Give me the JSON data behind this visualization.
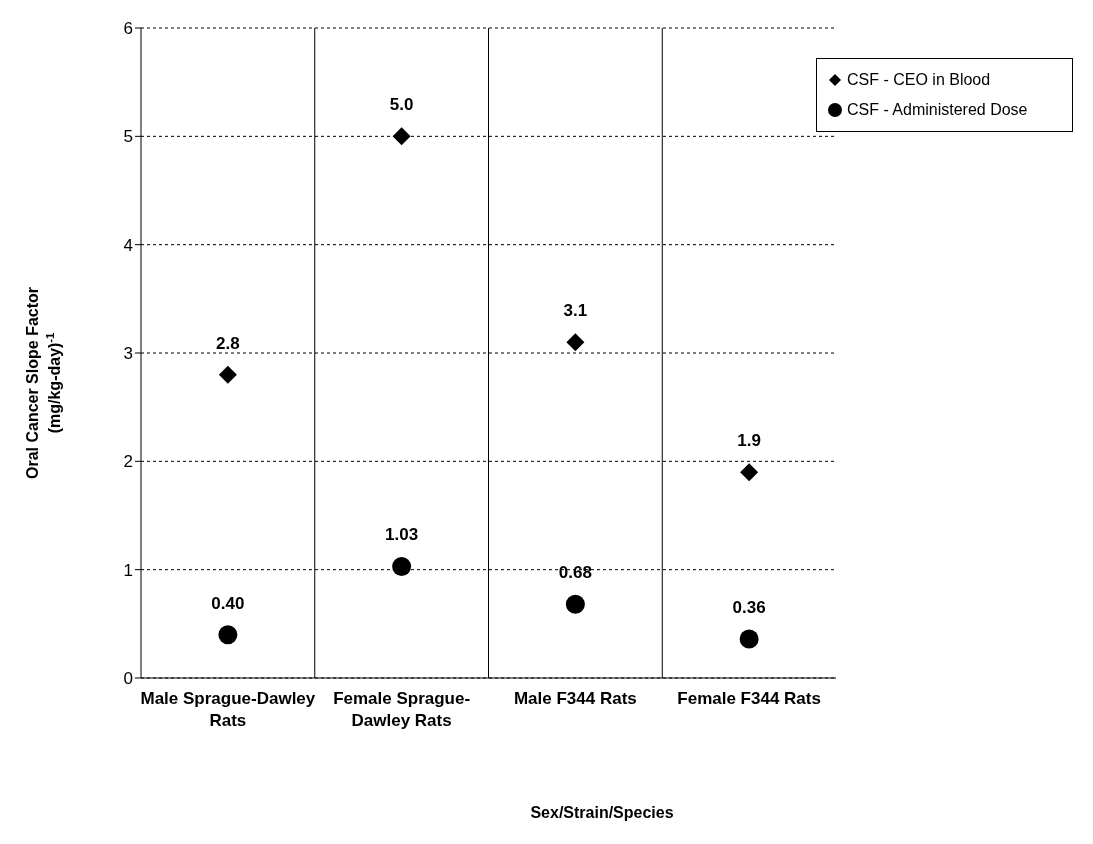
{
  "chart_data": {
    "type": "scatter",
    "xlabel": "Sex/Strain/Species",
    "ylabel": "Oral Cancer Slope Factor\n(mg/kg-day)$^{-1}$",
    "categories": [
      "Male Sprague-Dawley Rats",
      "Female Sprague-Dawley Rats",
      "Male F344 Rats",
      "Female F344 Rats"
    ],
    "series": [
      {
        "name": "CSF - CEO in Blood",
        "color": "#000000",
        "marker": "diamond",
        "values": [
          2.8,
          5.0,
          3.1,
          1.9
        ],
        "value_labels": [
          "2.8",
          "5.0",
          "3.1",
          "1.9"
        ]
      },
      {
        "name": "CSF - Administered Dose",
        "color": "#000000",
        "marker": "circle",
        "values": [
          0.4,
          1.03,
          0.68,
          0.36
        ],
        "value_labels": [
          "0.40",
          "1.03",
          "0.68",
          "0.36"
        ]
      }
    ],
    "ylim": [
      0,
      6
    ],
    "yticks": [
      0,
      1,
      2,
      3,
      4,
      5,
      6
    ],
    "grid": true,
    "legend": "top right"
  }
}
